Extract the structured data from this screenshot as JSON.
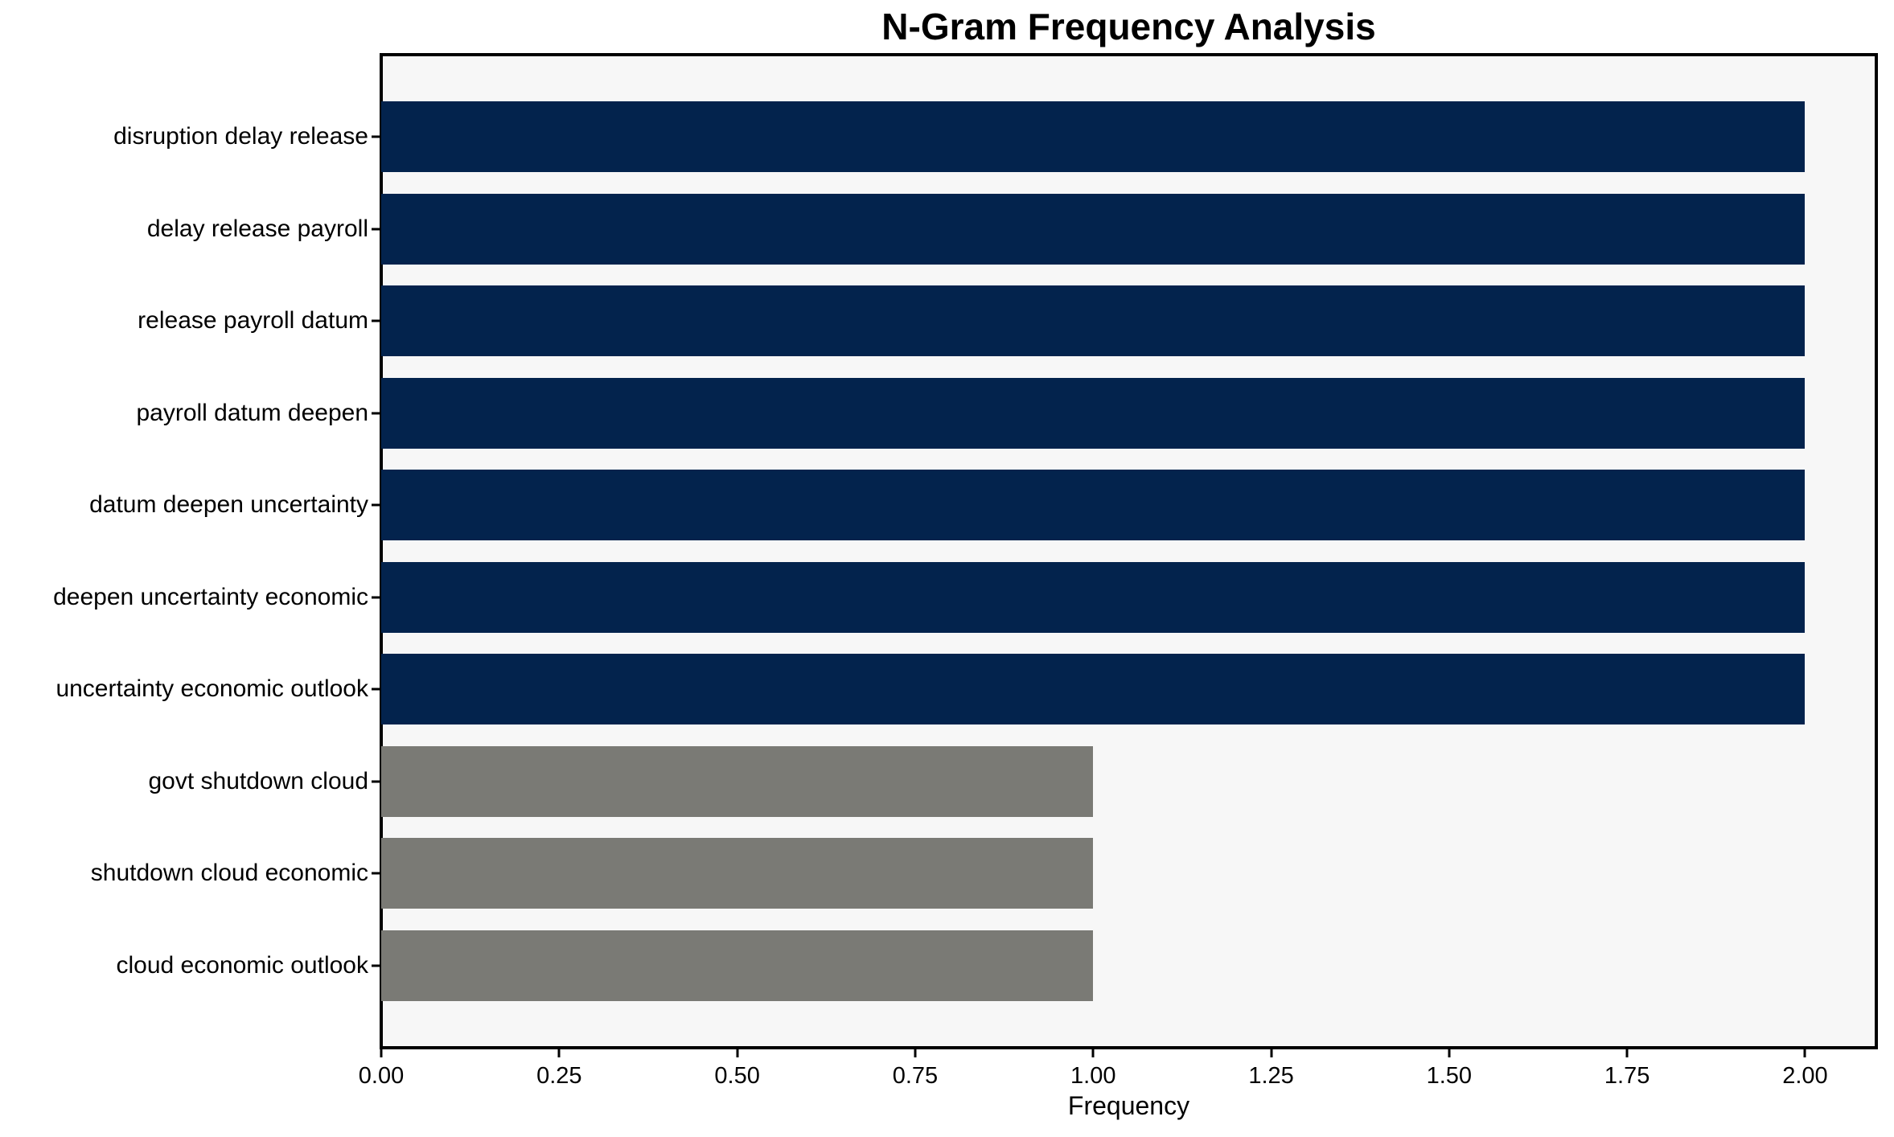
{
  "chart_data": {
    "type": "bar",
    "orientation": "horizontal",
    "title": "N-Gram Frequency Analysis",
    "xlabel": "Frequency",
    "ylabel": "",
    "categories": [
      "disruption delay release",
      "delay release payroll",
      "release payroll datum",
      "payroll datum deepen",
      "datum deepen uncertainty",
      "deepen uncertainty economic",
      "uncertainty economic outlook",
      "govt shutdown cloud",
      "shutdown cloud economic",
      "cloud economic outlook"
    ],
    "values": [
      2,
      2,
      2,
      2,
      2,
      2,
      2,
      1,
      1,
      1
    ],
    "bar_colors": [
      "#03234d",
      "#03234d",
      "#03234d",
      "#03234d",
      "#03234d",
      "#03234d",
      "#03234d",
      "#7a7a75",
      "#7a7a75",
      "#7a7a75"
    ],
    "x_tick_values": [
      0,
      0.25,
      0.5,
      0.75,
      1.0,
      1.25,
      1.5,
      1.75,
      2.0
    ],
    "x_tick_labels": [
      "0.00",
      "0.25",
      "0.50",
      "0.75",
      "1.00",
      "1.25",
      "1.50",
      "1.75",
      "2.00"
    ],
    "xlim": [
      0,
      2.1
    ],
    "grid": false,
    "legend": "none",
    "plot_background": "#f7f7f7",
    "figure_background": "#ffffff",
    "colors": {
      "frequency_2_bar": "#03234d",
      "frequency_1_bar": "#7a7a75",
      "axis_and_text": "#000000"
    }
  }
}
